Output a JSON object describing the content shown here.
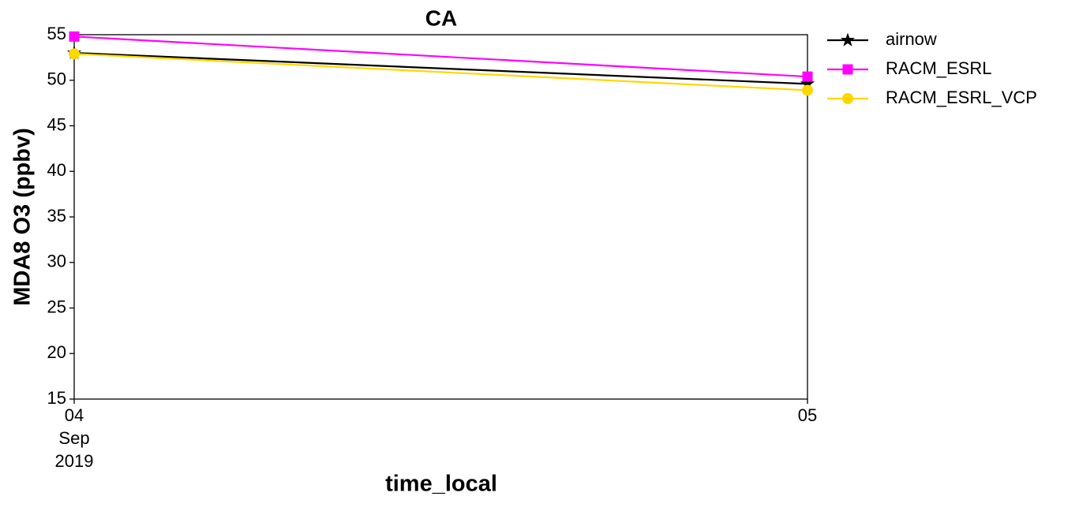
{
  "chart_data": {
    "type": "line",
    "title": "CA",
    "x_label": "time_local",
    "y_label": "MDA8 O3 (ppbv)",
    "x": [
      "2019-09-04",
      "2019-09-05"
    ],
    "xlim": [
      "2019-09-04",
      "2019-09-05"
    ],
    "xticks": [
      {
        "value": "2019-09-04",
        "label": [
          "04",
          "Sep",
          "2019"
        ]
      },
      {
        "value": "2019-09-05",
        "label": [
          "05"
        ]
      }
    ],
    "ylim": [
      15,
      55
    ],
    "yticks": [
      15,
      20,
      25,
      30,
      35,
      40,
      45,
      50,
      55
    ],
    "legend": "outside-upper-right",
    "series": [
      {
        "name": "airnow",
        "color": "#000000",
        "marker": "star",
        "values": [
          53.0,
          49.6
        ]
      },
      {
        "name": "RACM_ESRL",
        "color": "#ff00ff",
        "marker": "square",
        "values": [
          54.8,
          50.4
        ]
      },
      {
        "name": "RACM_ESRL_VCP",
        "color": "#ffd700",
        "marker": "circle",
        "values": [
          52.9,
          48.9
        ]
      }
    ]
  }
}
